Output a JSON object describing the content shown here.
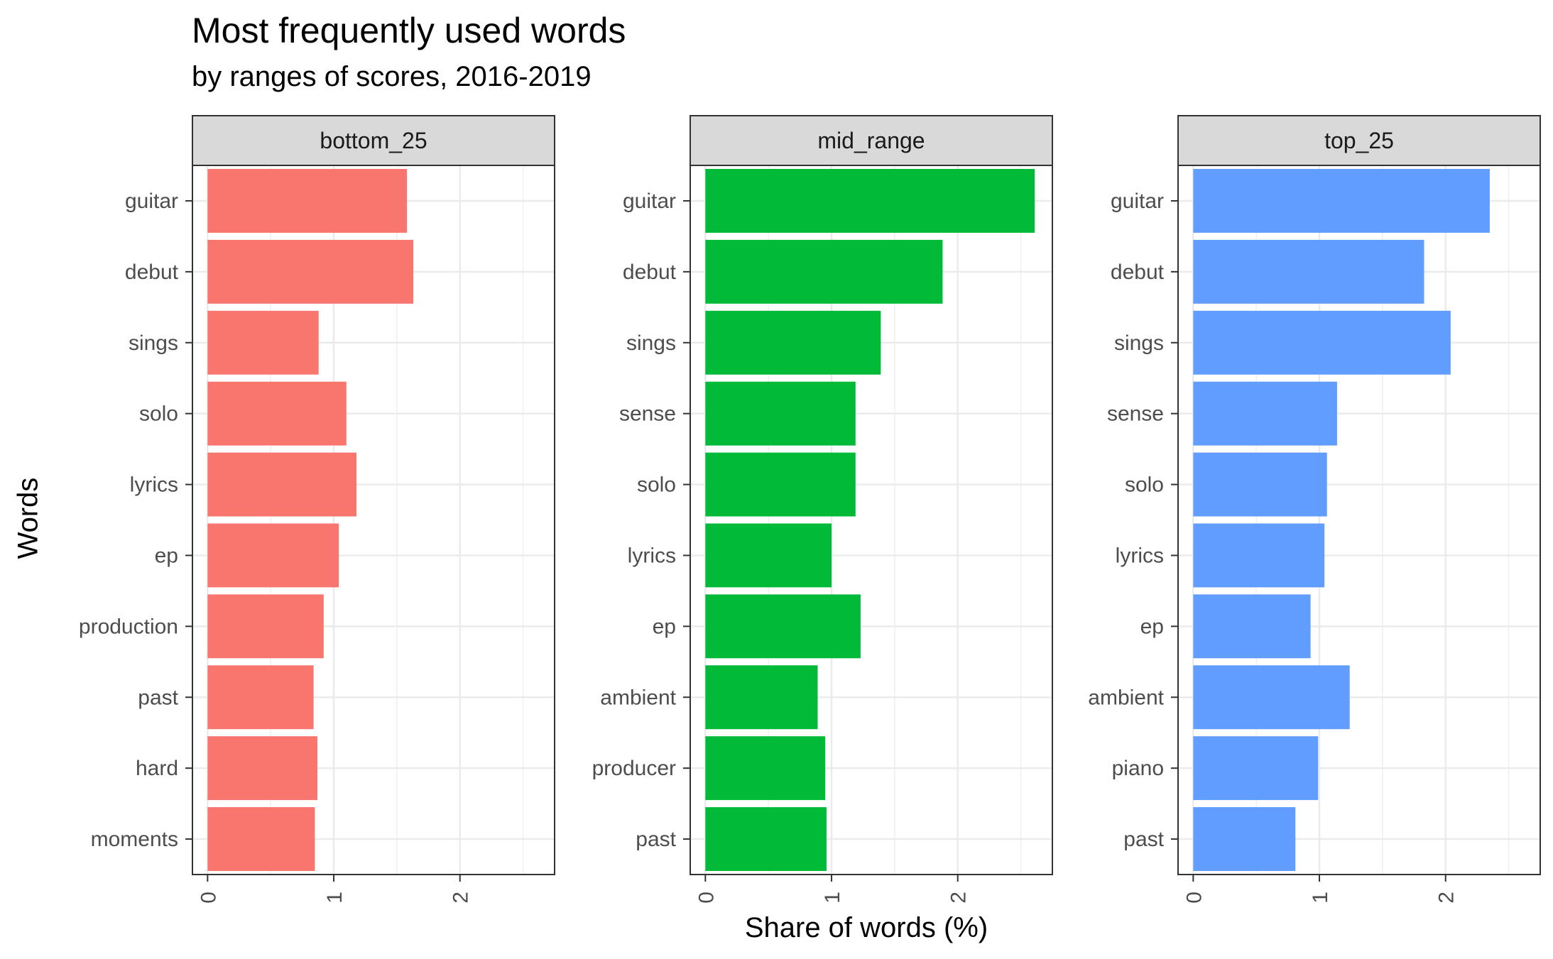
{
  "chart_data": {
    "type": "bar",
    "orientation": "horizontal",
    "title": "Most frequently used words",
    "subtitle": "by ranges of scores, 2016-2019",
    "xlabel": "Share of words (%)",
    "ylabel": "Words",
    "xlim": [
      -0.12,
      2.75
    ],
    "x_ticks": [
      "0",
      "1",
      "2"
    ],
    "grid": true,
    "legend": "none",
    "panels": [
      {
        "name": "bottom_25",
        "color": "#F8766D",
        "categories": [
          "guitar",
          "debut",
          "sings",
          "solo",
          "lyrics",
          "ep",
          "production",
          "past",
          "hard",
          "moments"
        ],
        "values": [
          1.58,
          1.63,
          0.88,
          1.1,
          1.18,
          1.04,
          0.92,
          0.84,
          0.87,
          0.85
        ]
      },
      {
        "name": "mid_range",
        "color": "#00BA38",
        "categories": [
          "guitar",
          "debut",
          "sings",
          "sense",
          "solo",
          "lyrics",
          "ep",
          "ambient",
          "producer",
          "past"
        ],
        "values": [
          2.61,
          1.88,
          1.39,
          1.19,
          1.19,
          1.0,
          1.23,
          0.89,
          0.95,
          0.96
        ]
      },
      {
        "name": "top_25",
        "color": "#619CFF",
        "categories": [
          "guitar",
          "debut",
          "sings",
          "sense",
          "solo",
          "lyrics",
          "ep",
          "ambient",
          "piano",
          "past"
        ],
        "values": [
          2.35,
          1.83,
          2.04,
          1.14,
          1.06,
          1.04,
          0.93,
          1.24,
          0.99,
          0.81
        ]
      }
    ]
  }
}
